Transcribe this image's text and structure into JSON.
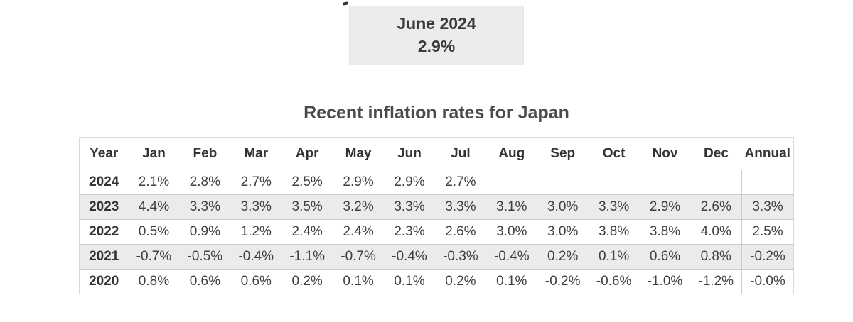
{
  "summary": {
    "month_label": "June 2024",
    "value": "2.9%"
  },
  "table": {
    "title": "Recent inflation rates for Japan",
    "columns": [
      "Year",
      "Jan",
      "Feb",
      "Mar",
      "Apr",
      "May",
      "Jun",
      "Jul",
      "Aug",
      "Sep",
      "Oct",
      "Nov",
      "Dec",
      "Annual"
    ],
    "rows": [
      {
        "year": "2024",
        "values": [
          "2.1%",
          "2.8%",
          "2.7%",
          "2.5%",
          "2.9%",
          "2.9%",
          "2.7%",
          "",
          "",
          "",
          "",
          "",
          ""
        ]
      },
      {
        "year": "2023",
        "values": [
          "4.4%",
          "3.3%",
          "3.3%",
          "3.5%",
          "3.2%",
          "3.3%",
          "3.3%",
          "3.1%",
          "3.0%",
          "3.3%",
          "2.9%",
          "2.6%",
          "3.3%"
        ]
      },
      {
        "year": "2022",
        "values": [
          "0.5%",
          "0.9%",
          "1.2%",
          "2.4%",
          "2.4%",
          "2.3%",
          "2.6%",
          "3.0%",
          "3.0%",
          "3.8%",
          "3.8%",
          "4.0%",
          "2.5%"
        ]
      },
      {
        "year": "2021",
        "values": [
          "-0.7%",
          "-0.5%",
          "-0.4%",
          "-1.1%",
          "-0.7%",
          "-0.4%",
          "-0.3%",
          "-0.4%",
          "0.2%",
          "0.1%",
          "0.6%",
          "0.8%",
          "-0.2%"
        ]
      },
      {
        "year": "2020",
        "values": [
          "0.8%",
          "0.6%",
          "0.6%",
          "0.2%",
          "0.1%",
          "0.1%",
          "0.2%",
          "0.1%",
          "-0.2%",
          "-0.6%",
          "-1.0%",
          "-1.2%",
          "-0.0%"
        ]
      }
    ]
  },
  "colors": {
    "summary_box_bg": "#ececec",
    "stripe_row_bg": "#ebebeb",
    "grid_border": "#cccccc",
    "outer_border": "#d9d9d9",
    "text": "#3f3f3f"
  }
}
